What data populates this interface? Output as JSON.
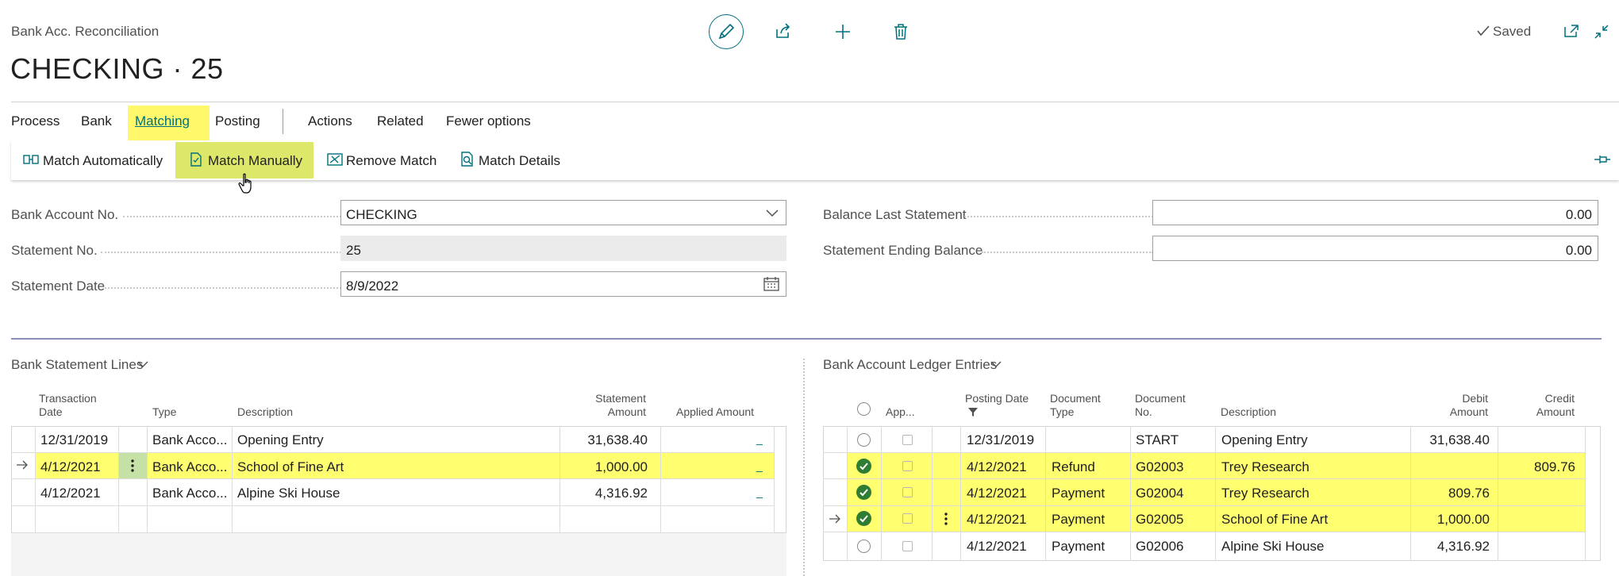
{
  "header": {
    "breadcrumb": "Bank Acc. Reconciliation",
    "title": "CHECKING · 25",
    "saved_label": "Saved"
  },
  "menu": {
    "items": [
      "Process",
      "Bank",
      "Matching",
      "Posting",
      "Actions",
      "Related",
      "Fewer options"
    ],
    "active": "Matching"
  },
  "actions": {
    "match_automatically": "Match Automatically",
    "match_manually": "Match Manually",
    "remove_match": "Remove Match",
    "match_details": "Match Details"
  },
  "form": {
    "bank_account_no": {
      "label": "Bank Account No.",
      "value": "CHECKING"
    },
    "statement_no": {
      "label": "Statement No.",
      "value": "25"
    },
    "statement_date": {
      "label": "Statement Date",
      "value": "8/9/2022"
    },
    "balance_last_statement": {
      "label": "Balance Last Statement",
      "value": "0.00"
    },
    "statement_ending_balance": {
      "label": "Statement Ending Balance",
      "value": "0.00"
    }
  },
  "statement_lines": {
    "title": "Bank Statement Lines",
    "columns": {
      "transaction_date_1": "Transaction",
      "transaction_date_2": "Date",
      "type": "Type",
      "description": "Description",
      "statement_amount_1": "Statement",
      "statement_amount_2": "Amount",
      "applied_amount": "Applied Amount"
    },
    "rows": [
      {
        "date": "12/31/2019",
        "type": "Bank Acco...",
        "description": "Opening Entry",
        "amount": "31,638.40",
        "applied": "_"
      },
      {
        "date": "4/12/2021",
        "type": "Bank Acco...",
        "description": "School of Fine Art",
        "amount": "1,000.00",
        "applied": "_"
      },
      {
        "date": "4/12/2021",
        "type": "Bank Acco...",
        "description": "Alpine Ski House",
        "amount": "4,316.92",
        "applied": "_"
      }
    ]
  },
  "ledger_entries": {
    "title": "Bank Account Ledger Entries",
    "columns": {
      "applied": "App...",
      "posting_date": "Posting Date",
      "document_type_1": "Document",
      "document_type_2": "Type",
      "document_no_1": "Document",
      "document_no_2": "No.",
      "description": "Description",
      "debit_1": "Debit",
      "debit_2": "Amount",
      "credit_1": "Credit",
      "credit_2": "Amount"
    },
    "rows": [
      {
        "selected": false,
        "date": "12/31/2019",
        "doc_type": "",
        "doc_no": "START",
        "description": "Opening Entry",
        "debit": "31,638.40",
        "credit": ""
      },
      {
        "selected": true,
        "date": "4/12/2021",
        "doc_type": "Refund",
        "doc_no": "G02003",
        "description": "Trey Research",
        "debit": "",
        "credit": "809.76"
      },
      {
        "selected": true,
        "date": "4/12/2021",
        "doc_type": "Payment",
        "doc_no": "G02004",
        "description": "Trey Research",
        "debit": "809.76",
        "credit": ""
      },
      {
        "selected": true,
        "date": "4/12/2021",
        "doc_type": "Payment",
        "doc_no": "G02005",
        "description": "School of Fine Art",
        "debit": "1,000.00",
        "credit": ""
      },
      {
        "selected": false,
        "date": "4/12/2021",
        "doc_type": "Payment",
        "doc_no": "G02006",
        "description": "Alpine Ski House",
        "debit": "4,316.92",
        "credit": ""
      }
    ]
  },
  "colors": {
    "accent": "#00707c",
    "highlight": "#ffff70",
    "selected": "#2e7d32"
  }
}
